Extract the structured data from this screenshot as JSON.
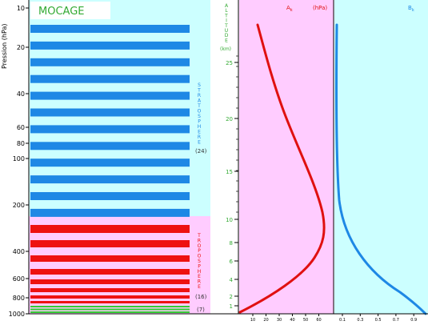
{
  "title": "MOCAGE",
  "pressure_axis": {
    "label": "Pression (hPa)",
    "ticks": [
      "10",
      "20",
      "40",
      "60",
      "80",
      "100",
      "200",
      "400",
      "600",
      "800",
      "1000"
    ]
  },
  "regions": {
    "stratosphere": {
      "letters": [
        "S",
        "T",
        "R",
        "A",
        "T",
        "O",
        "S",
        "P",
        "H",
        "E",
        "R",
        "E"
      ],
      "count_label": "(24)",
      "color": "#1e88e5",
      "background": "#ccffff"
    },
    "troposphere": {
      "letters": [
        "T",
        "R",
        "O",
        "P",
        "O",
        "S",
        "P",
        "H",
        "E",
        "R",
        "E"
      ],
      "count_label": "(16)",
      "color": "#ee1111",
      "background": "#ffccff"
    },
    "boundary": {
      "count_label": "(7)",
      "color": "#33cc33"
    }
  },
  "altitude_axis": {
    "letters": [
      "A",
      "L",
      "T",
      "I",
      "T",
      "U",
      "D",
      "E"
    ],
    "unit": "(km)",
    "ticks": [
      "25",
      "20",
      "15",
      "10",
      "8",
      "6",
      "4",
      "2",
      "1"
    ]
  },
  "panel_a": {
    "label": "A",
    "sub": "k",
    "unit": "(hPa)",
    "x_ticks": [
      "10",
      "20",
      "30",
      "40",
      "50",
      "60"
    ],
    "curve_color": "#e01010",
    "background": "#ffccff"
  },
  "panel_b": {
    "label": "B",
    "sub": "k",
    "x_ticks": [
      "0.1",
      "0.3",
      "0.5",
      "0.7",
      "0.9"
    ],
    "curve_color": "#1e88e5",
    "background": "#ccffff"
  }
}
